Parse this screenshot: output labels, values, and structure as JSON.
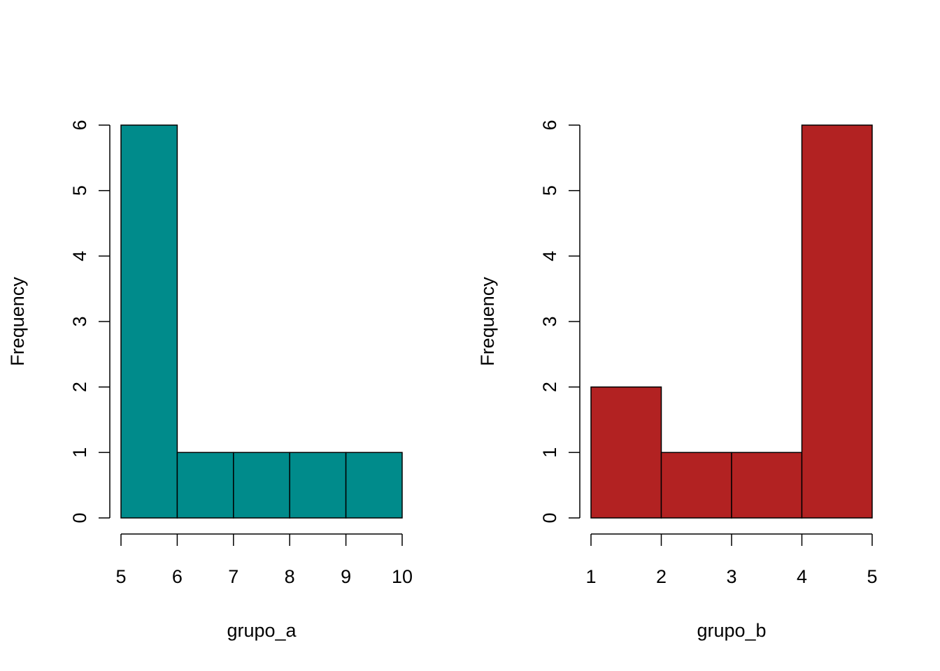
{
  "chart_data": [
    {
      "type": "bar",
      "subtype": "histogram",
      "bins": [
        [
          5,
          6
        ],
        [
          6,
          7
        ],
        [
          7,
          8
        ],
        [
          8,
          9
        ],
        [
          9,
          10
        ]
      ],
      "values": [
        6,
        1,
        1,
        1,
        1
      ],
      "xticks": [
        5,
        6,
        7,
        8,
        9,
        10
      ],
      "xtick_labels": [
        "5",
        "6",
        "7",
        "8",
        "9",
        "10"
      ],
      "yticks": [
        0,
        1,
        2,
        3,
        4,
        5,
        6
      ],
      "ytick_labels": [
        "0",
        "1",
        "2",
        "3",
        "4",
        "5",
        "6"
      ],
      "xlabel": "grupo_a",
      "ylabel": "Frequency",
      "xlim": [
        5,
        10
      ],
      "ylim": [
        0,
        6
      ],
      "bar_color": "#008B8B",
      "grid": false,
      "legend": "none"
    },
    {
      "type": "bar",
      "subtype": "histogram",
      "bins": [
        [
          1,
          2
        ],
        [
          2,
          3
        ],
        [
          3,
          4
        ],
        [
          4,
          5
        ]
      ],
      "values": [
        2,
        1,
        1,
        6
      ],
      "xticks": [
        1,
        2,
        3,
        4,
        5
      ],
      "xtick_labels": [
        "1",
        "2",
        "3",
        "4",
        "5"
      ],
      "yticks": [
        0,
        1,
        2,
        3,
        4,
        5,
        6
      ],
      "ytick_labels": [
        "0",
        "1",
        "2",
        "3",
        "4",
        "5",
        "6"
      ],
      "xlabel": "grupo_b",
      "ylabel": "Frequency",
      "xlim": [
        1,
        5
      ],
      "ylim": [
        0,
        6
      ],
      "bar_color": "#B22222",
      "grid": false,
      "legend": "none"
    }
  ]
}
